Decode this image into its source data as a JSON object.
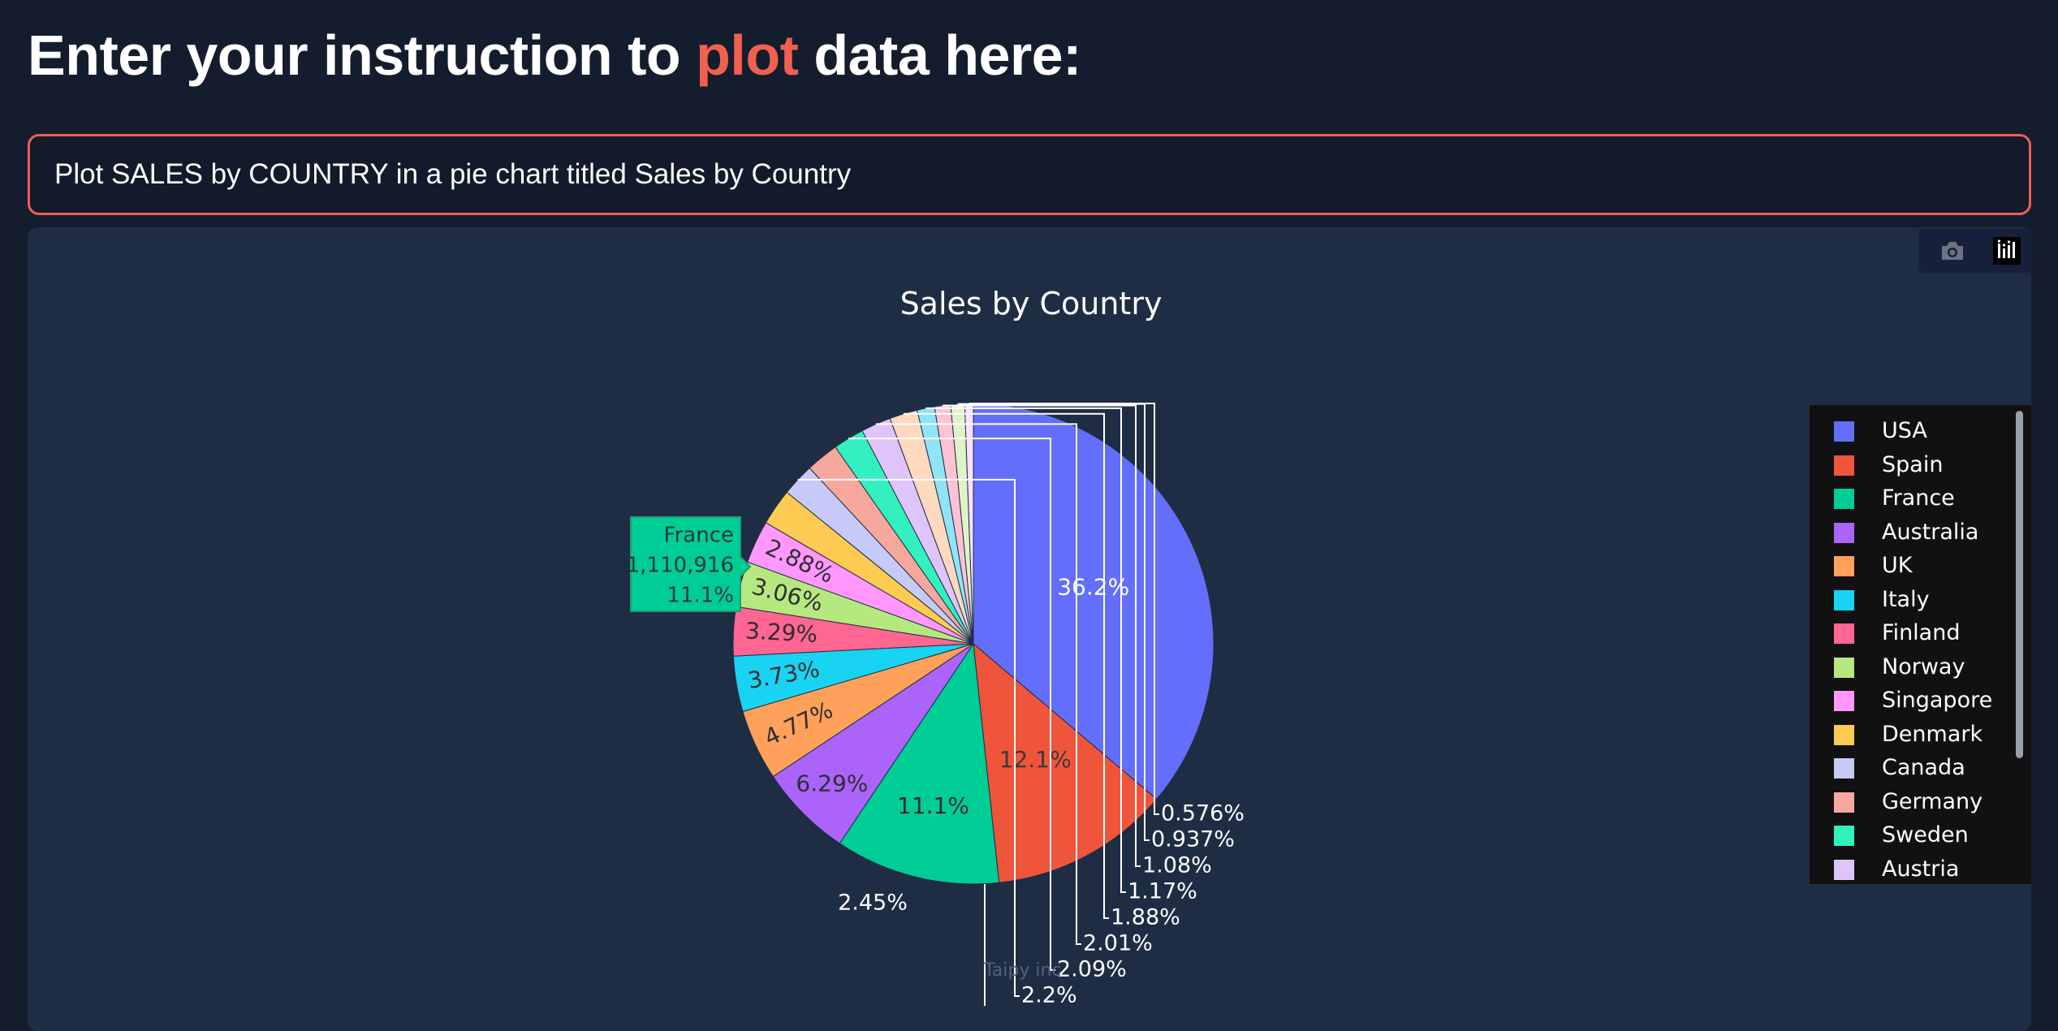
{
  "header": {
    "title_prefix": "Enter your instruction to ",
    "title_accent": "plot",
    "title_suffix": " data here:"
  },
  "prompt": {
    "value": "Plot SALES by COUNTRY in a pie chart titled Sales by Country"
  },
  "toolbar": {
    "camera_icon": "camera-icon",
    "logo_icon": "plotly-logo-icon"
  },
  "watermark": "Taipy inc",
  "chart_data": {
    "type": "pie",
    "title": "Sales by Country",
    "tooltip": {
      "label": "France",
      "value": "1,110,916",
      "percent": "11.1%"
    },
    "slices": [
      {
        "label": "USA",
        "value": 36.2,
        "text": "36.2%",
        "color": "#636efa"
      },
      {
        "label": "Spain",
        "value": 12.1,
        "text": "12.1%",
        "color": "#ef553b"
      },
      {
        "label": "France",
        "value": 11.1,
        "text": "11.1%",
        "color": "#00cc96"
      },
      {
        "label": "Australia",
        "value": 6.29,
        "text": "6.29%",
        "color": "#ab63fa"
      },
      {
        "label": "UK",
        "value": 4.77,
        "text": "4.77%",
        "color": "#ffa15a"
      },
      {
        "label": "Italy",
        "value": 3.73,
        "text": "3.73%",
        "color": "#19d3f3"
      },
      {
        "label": "Finland",
        "value": 3.29,
        "text": "3.29%",
        "color": "#ff6692"
      },
      {
        "label": "Norway",
        "value": 3.06,
        "text": "3.06%",
        "color": "#b6e880"
      },
      {
        "label": "Singapore",
        "value": 2.88,
        "text": "2.88%",
        "color": "#ff97ff"
      },
      {
        "label": "Denmark",
        "value": 2.45,
        "text": "2.45%",
        "color": "#fecb52"
      },
      {
        "label": "Canada",
        "value": 2.2,
        "text": "2.2%",
        "color": "#c6caf9"
      },
      {
        "label": "Germany",
        "value": 2.2,
        "text": "",
        "color": "#f7a89c"
      },
      {
        "label": "Sweden",
        "value": 2.09,
        "text": "2.09%",
        "color": "#33f0c0"
      },
      {
        "label": "Austria",
        "value": 2.01,
        "text": "2.01%",
        "color": "#dfc4fb"
      },
      {
        "label": "",
        "value": 1.88,
        "text": "1.88%",
        "color": "#ffd9bd"
      },
      {
        "label": "",
        "value": 1.17,
        "text": "1.17%",
        "color": "#8fe4f8"
      },
      {
        "label": "",
        "value": 1.08,
        "text": "1.08%",
        "color": "#ffc2d3"
      },
      {
        "label": "",
        "value": 0.937,
        "text": "0.937%",
        "color": "#dff3c9"
      },
      {
        "label": "",
        "value": 0.576,
        "text": "0.576%",
        "color": "#ffe0ff"
      }
    ]
  }
}
